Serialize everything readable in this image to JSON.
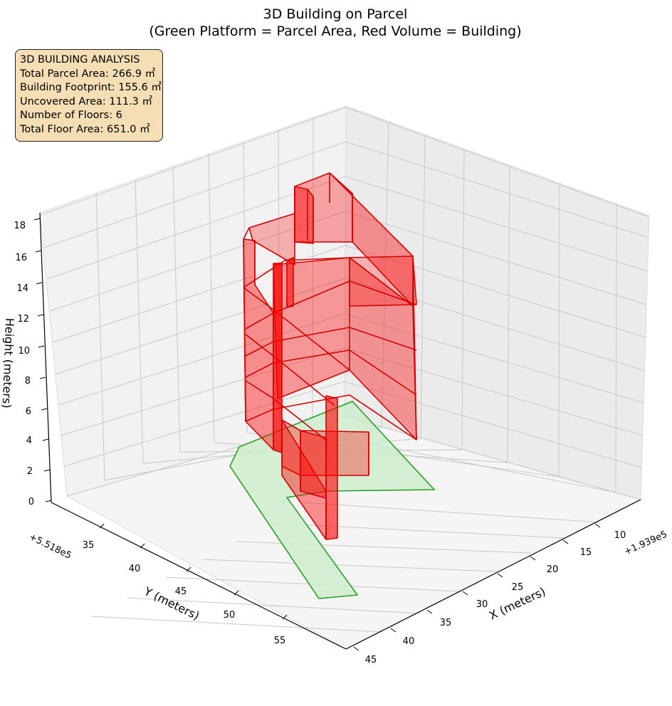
{
  "chart_data": {
    "type": "3d-polygons",
    "title_line1": "3D Building on Parcel",
    "title_line2": "(Green Platform = Parcel Area, Red Volume = Building)",
    "xlabel": "X (meters)",
    "ylabel": "Y (meters)",
    "zlabel": "Height (meters)",
    "x_offset": "+1.939e5",
    "y_offset": "+5.518e5",
    "x_ticks": [
      "10",
      "15",
      "20",
      "25",
      "30",
      "35",
      "40",
      "45"
    ],
    "y_ticks": [
      "35",
      "40",
      "45",
      "50",
      "55"
    ],
    "z_ticks": [
      "0",
      "2",
      "4",
      "6",
      "8",
      "10",
      "12",
      "14",
      "16",
      "18"
    ],
    "xlim": [
      5,
      48
    ],
    "ylim": [
      30,
      60
    ],
    "zlim": [
      0,
      18.5
    ],
    "grid": true,
    "colors": {
      "parcel_fill": "#cdeecd",
      "parcel_edge": "#2ca02c",
      "building_fill": "#ff0000",
      "building_edge": "#d40000",
      "info_box_bg": "#f5deb3"
    },
    "info_box": {
      "line1": "3D BUILDING ANALYSIS",
      "line2": "Total Parcel Area: 266.9 ㎡",
      "line3": "Building Footprint: 155.6 ㎡",
      "line4": "Uncovered Area: 111.3 ㎡",
      "line5": "Number of Floors: 6",
      "line6": "Total Floor Area: 651.0 ㎡"
    }
  }
}
